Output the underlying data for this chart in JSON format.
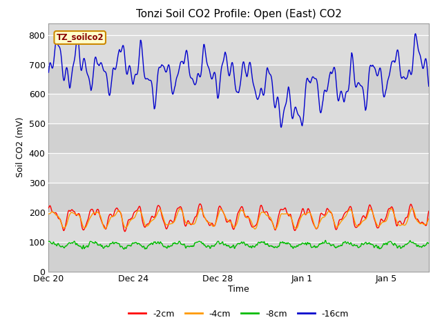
{
  "title": "Tonzi Soil CO2 Profile: Open (East) CO2",
  "ylabel": "Soil CO2 (mV)",
  "xlabel": "Time",
  "ylim": [
    0,
    840
  ],
  "yticks": [
    0,
    100,
    200,
    300,
    400,
    500,
    600,
    700,
    800
  ],
  "plot_bg": "#dcdcdc",
  "fig_bg": "#ffffff",
  "legend_label": "TZ_soilco2",
  "series_labels": [
    "-2cm",
    "-4cm",
    "-8cm",
    "-16cm"
  ],
  "series_colors": [
    "#ff0000",
    "#ff9900",
    "#00bb00",
    "#0000cc"
  ],
  "x_tick_labels": [
    "Dec 20",
    "Dec 24",
    "Dec 28",
    "Jan 1",
    "Jan 5"
  ],
  "n_points": 800,
  "title_fontsize": 11
}
